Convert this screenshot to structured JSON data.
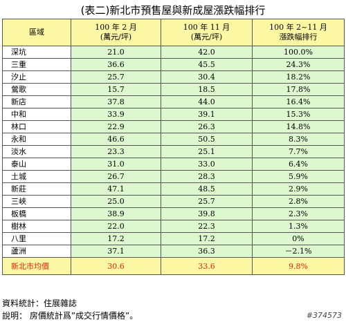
{
  "title": "(表二)新北市預售屋與新成屋漲跌幅排行",
  "headers": {
    "region": "區域",
    "feb_line1": "100 年 2 月",
    "feb_line2": "(萬元/坪)",
    "nov_line1": "100 年 11 月",
    "nov_line2": "(萬元/坪)",
    "change_line1": "100 年 2~11 月",
    "change_line2": "漲跌幅排行"
  },
  "rows": [
    {
      "region": "深坑",
      "feb": "21.0",
      "nov": "42.0",
      "change": "100.0%"
    },
    {
      "region": "三重",
      "feb": "36.6",
      "nov": "45.5",
      "change": "24.3%"
    },
    {
      "region": "汐止",
      "feb": "25.7",
      "nov": "30.4",
      "change": "18.2%"
    },
    {
      "region": "鶯歌",
      "feb": "15.7",
      "nov": "18.5",
      "change": "17.8%"
    },
    {
      "region": "新店",
      "feb": "37.8",
      "nov": "44.0",
      "change": "16.4%"
    },
    {
      "region": "中和",
      "feb": "33.9",
      "nov": "39.1",
      "change": "15.3%"
    },
    {
      "region": "林口",
      "feb": "22.9",
      "nov": "26.3",
      "change": "14.8%"
    },
    {
      "region": "永和",
      "feb": "46.6",
      "nov": "50.5",
      "change": "8.3%"
    },
    {
      "region": "淡水",
      "feb": "23.3",
      "nov": "25.1",
      "change": "7.7%"
    },
    {
      "region": "泰山",
      "feb": "31.0",
      "nov": "33.0",
      "change": "6.4%"
    },
    {
      "region": "土城",
      "feb": "26.7",
      "nov": "28.3",
      "change": "5.9%"
    },
    {
      "region": "新莊",
      "feb": "47.1",
      "nov": "48.5",
      "change": "2.9%"
    },
    {
      "region": "三峽",
      "feb": "25.0",
      "nov": "25.7",
      "change": "2.8%"
    },
    {
      "region": "板橋",
      "feb": "38.9",
      "nov": "39.8",
      "change": "2.3%"
    },
    {
      "region": "樹林",
      "feb": "22.0",
      "nov": "22.3",
      "change": "1.3%"
    },
    {
      "region": "八里",
      "feb": "17.2",
      "nov": "17.2",
      "change": "0%"
    },
    {
      "region": "蘆洲",
      "feb": "37.1",
      "nov": "36.3",
      "change": "－2.1%"
    }
  ],
  "average": {
    "region": "新北市均價",
    "feb": "30.6",
    "nov": "33.6",
    "change": "9.8%"
  },
  "footer": {
    "source": "資料統計：住展雜誌",
    "note": "說明：  房價統計爲”成交行情價格”。"
  },
  "watermark": "#374573",
  "colors": {
    "header_bg": "#fcf7a3",
    "cell_bg": "#ddf7cf",
    "avg_text": "#e8230f"
  }
}
